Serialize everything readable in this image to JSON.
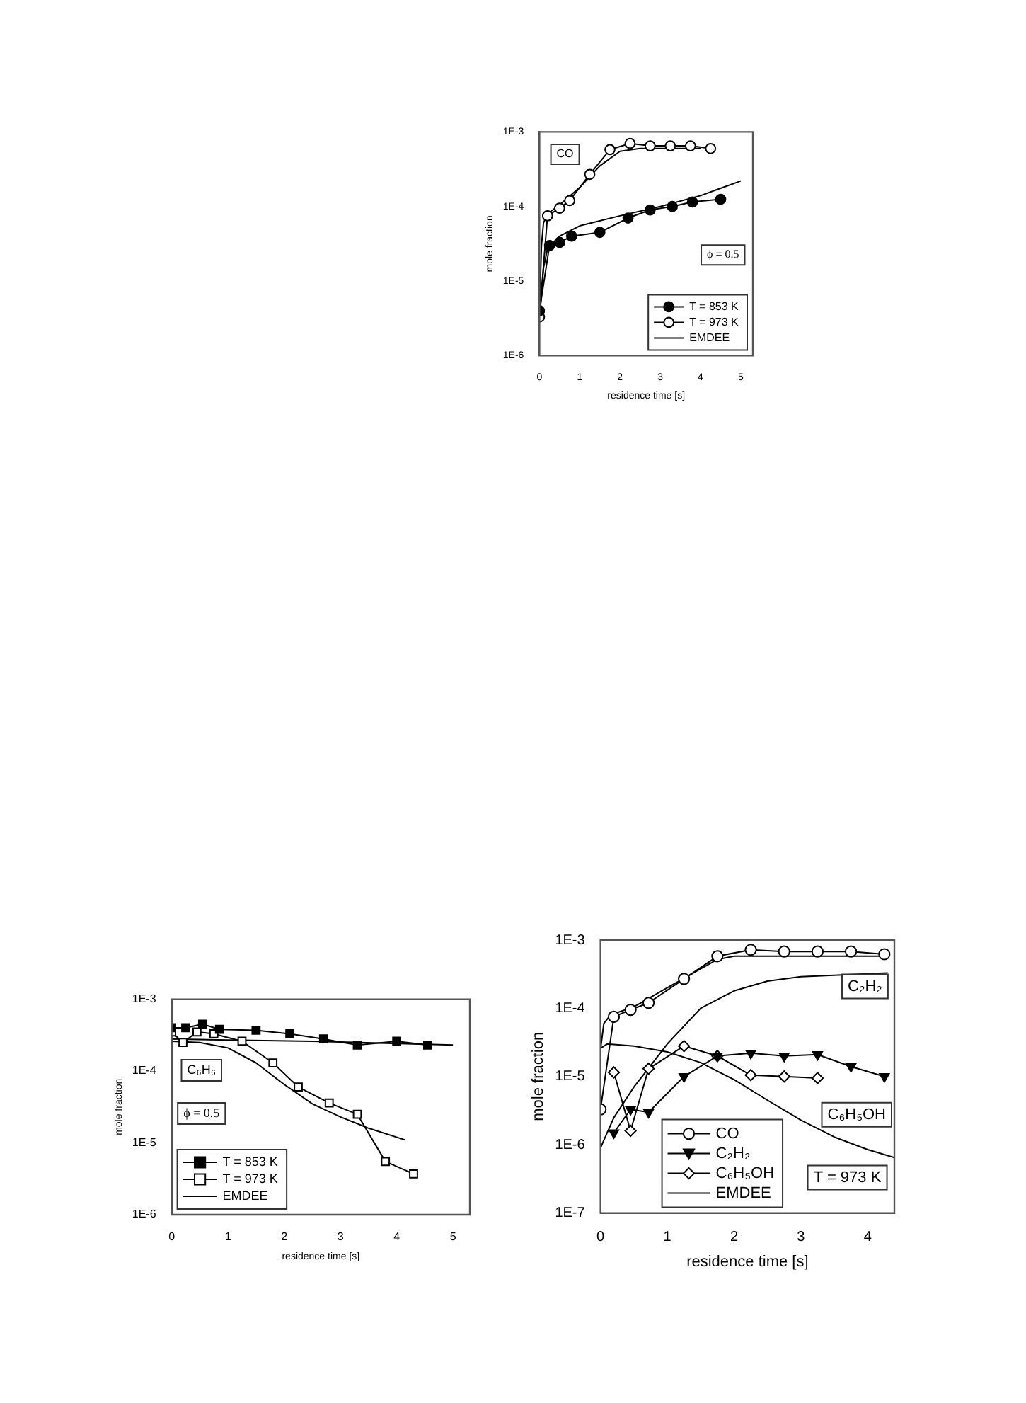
{
  "chart_data": [
    {
      "type": "line",
      "xlabel": "residence time [s]",
      "ylabel": "mole fraction",
      "log": "y",
      "grid": false,
      "legend": "bottom right",
      "xlim": [
        0,
        5.3
      ],
      "xticks": [
        0,
        1,
        2,
        3,
        4,
        5
      ],
      "ylim": [
        1e-06,
        0.001
      ],
      "yticks": [
        {
          "value": 1e-06,
          "label": "1E-6"
        },
        {
          "value": 1e-05,
          "label": "1E-5"
        },
        {
          "value": 0.0001,
          "label": "1E-4"
        },
        {
          "value": 0.001,
          "label": "1E-3"
        }
      ],
      "annotations": [
        "CO",
        "ϕ = 0.5"
      ],
      "series": [
        {
          "name": "T = 853 K",
          "color": "#000000",
          "marker": "circle",
          "colors": [
            "#000000",
            "#000000",
            "#000000",
            "#000000",
            "#000000",
            "#000000",
            "#000000",
            "#000000",
            "#000000",
            "#000000"
          ],
          "x": [
            0,
            0.25,
            0.5,
            0.8,
            1.5,
            2.2,
            2.75,
            3.3,
            3.8,
            4.5
          ],
          "values": [
            4e-06,
            3e-05,
            3.3e-05,
            4e-05,
            4.5e-05,
            7e-05,
            9e-05,
            0.0001,
            0.000115,
            0.000125
          ]
        },
        {
          "name": "T = 973 K",
          "color": "#000000",
          "marker": "circle",
          "colors": [
            "#ffffff",
            "#ffffff",
            "#ffffff",
            "#ffffff",
            "#ffffff",
            "#ffffff",
            "#ffffff",
            "#ffffff",
            "#ffffff",
            "#ffffff",
            "#ffffff"
          ],
          "x": [
            0,
            0.2,
            0.5,
            0.75,
            1.25,
            1.75,
            2.25,
            2.75,
            3.25,
            3.75,
            4.25
          ],
          "values": [
            3.3e-06,
            7.5e-05,
            9.5e-05,
            0.00012,
            0.00027,
            0.00058,
            0.0007,
            0.00065,
            0.00065,
            0.00065,
            0.0006
          ]
        },
        {
          "name": "EMDEE",
          "color": "#000000",
          "marker": "none",
          "x": [
            0,
            0.05,
            0.1,
            0.2,
            0.5,
            1,
            1.5,
            2,
            2.5,
            3,
            4
          ],
          "values": [
            4e-06,
            3e-05,
            6e-05,
            8e-05,
            0.000105,
            0.00018,
            0.00035,
            0.00055,
            0.0006,
            0.0006,
            0.0006
          ]
        },
        {
          "color": "#000000",
          "marker": "none",
          "x": [
            0,
            0.1,
            0.2,
            0.5,
            1,
            2,
            3,
            4,
            5
          ],
          "values": [
            3e-06,
            1.5e-05,
            2.7e-05,
            4e-05,
            5.5e-05,
            7.5e-05,
            0.0001,
            0.00014,
            0.00022
          ]
        }
      ]
    },
    {
      "type": "line",
      "xlabel": "residence time [s]",
      "ylabel": "mole fraction",
      "log": "y",
      "grid": false,
      "legend": "bottom left",
      "xlim": [
        0,
        5.3
      ],
      "xticks": [
        0,
        1,
        2,
        3,
        4,
        5
      ],
      "ylim": [
        1e-06,
        0.001
      ],
      "yticks": [
        {
          "value": 1e-06,
          "label": "1E-6"
        },
        {
          "value": 1e-05,
          "label": "1E-5"
        },
        {
          "value": 0.0001,
          "label": "1E-4"
        },
        {
          "value": 0.001,
          "label": "1E-3"
        }
      ],
      "annotations": [
        "C₆H₆",
        "ϕ = 0.5"
      ],
      "series": [
        {
          "name": "T = 853 K",
          "color": "#000000",
          "marker": "square",
          "colors": [
            "#000000",
            "#000000",
            "#000000",
            "#000000",
            "#000000",
            "#000000",
            "#000000",
            "#000000",
            "#000000",
            "#000000"
          ],
          "x": [
            0,
            0.25,
            0.55,
            0.85,
            1.5,
            2.1,
            2.7,
            3.3,
            4,
            4.55
          ],
          "values": [
            0.0004,
            0.0004,
            0.00045,
            0.00038,
            0.00037,
            0.00033,
            0.00028,
            0.00023,
            0.00026,
            0.00023
          ]
        },
        {
          "name": "T = 973 K",
          "color": "#000000",
          "marker": "square",
          "colors": [
            "#ffffff",
            "#ffffff",
            "#ffffff",
            "#ffffff",
            "#ffffff",
            "#ffffff",
            "#ffffff",
            "#ffffff",
            "#ffffff",
            "#ffffff",
            "#ffffff"
          ],
          "x": [
            0,
            0.2,
            0.45,
            0.75,
            1.25,
            1.8,
            2.25,
            2.8,
            3.3,
            3.8,
            4.3
          ],
          "values": [
            0.00035,
            0.00025,
            0.00035,
            0.00033,
            0.00026,
            0.00013,
            6e-05,
            3.6e-05,
            2.5e-05,
            5.5e-06,
            3.7e-06
          ]
        },
        {
          "name": "EMDEE",
          "color": "#000000",
          "marker": "none",
          "x": [
            0,
            1,
            2.5,
            5
          ],
          "values": [
            0.00028,
            0.00027,
            0.00026,
            0.00023
          ]
        },
        {
          "color": "#000000",
          "marker": "none",
          "x": [
            0,
            0.5,
            1,
            1.5,
            2,
            2.5,
            3,
            3.5,
            4.15
          ],
          "values": [
            0.00026,
            0.00025,
            0.00021,
            0.00013,
            6.5e-05,
            3.5e-05,
            2.3e-05,
            1.6e-05,
            1.1e-05
          ]
        }
      ]
    },
    {
      "type": "line",
      "xlabel": "residence time [s]",
      "ylabel": "mole fraction",
      "log": "y",
      "grid": false,
      "legend": "bottom left",
      "xlim": [
        0,
        4.4
      ],
      "xticks": [
        0,
        1,
        2,
        3,
        4
      ],
      "ylim": [
        1e-07,
        0.001
      ],
      "yticks": [
        {
          "value": 1e-07,
          "label": "1E-7"
        },
        {
          "value": 1e-06,
          "label": "1E-6"
        },
        {
          "value": 1e-05,
          "label": "1E-5"
        },
        {
          "value": 0.0001,
          "label": "1E-4"
        },
        {
          "value": 0.001,
          "label": "1E-3"
        }
      ],
      "annotations": [
        "C₂H₂",
        "C₆H₅OH",
        "T = 973 K"
      ],
      "series": [
        {
          "name": "CO",
          "color": "#000000",
          "marker": "circle",
          "colors": [
            "#ffffff",
            "#ffffff",
            "#ffffff",
            "#ffffff",
            "#ffffff",
            "#ffffff",
            "#ffffff",
            "#ffffff",
            "#ffffff",
            "#ffffff",
            "#ffffff"
          ],
          "x": [
            0,
            0.2,
            0.45,
            0.72,
            1.25,
            1.75,
            2.25,
            2.75,
            3.25,
            3.75,
            4.25
          ],
          "values": [
            3.3e-06,
            7.5e-05,
            9.5e-05,
            0.00012,
            0.00027,
            0.00058,
            0.00072,
            0.00068,
            0.00068,
            0.00068,
            0.00062
          ]
        },
        {
          "name": "C₂H₂",
          "color": "#000000",
          "marker": "triangle",
          "colors": [
            "#000000",
            "#000000",
            "#000000",
            "#000000",
            "#000000",
            "#000000",
            "#000000",
            "#000000",
            "#000000",
            "#000000"
          ],
          "x": [
            0.2,
            0.45,
            0.72,
            1.25,
            1.75,
            2.25,
            2.75,
            3.25,
            3.75,
            4.25
          ],
          "values": [
            1.5e-06,
            3.3e-06,
            3e-06,
            1e-05,
            2e-05,
            2.2e-05,
            2e-05,
            2.1e-05,
            1.4e-05,
            1e-05
          ]
        },
        {
          "name": "C₆H₅OH",
          "color": "#000000",
          "marker": "diamond",
          "colors": [
            "#ffffff",
            "#ffffff",
            "#ffffff",
            "#ffffff",
            "#ffffff",
            "#ffffff",
            "#ffffff",
            "#ffffff"
          ],
          "x": [
            0.2,
            0.45,
            0.72,
            1.25,
            1.75,
            2.25,
            2.75,
            3.25
          ],
          "values": [
            1.15e-05,
            1.6e-06,
            1.3e-05,
            2.8e-05,
            2e-05,
            1.05e-05,
            1e-05,
            9.5e-06
          ]
        },
        {
          "name": "EMDEE",
          "color": "#000000",
          "marker": "none",
          "x": [
            0,
            0.05,
            0.15,
            0.5,
            1,
            1.5,
            1.75,
            2,
            3,
            4.3
          ],
          "values": [
            2.5e-05,
            6e-05,
            8e-05,
            0.000105,
            0.0002,
            0.00038,
            0.00052,
            0.00058,
            0.00058,
            0.00058
          ]
        },
        {
          "color": "#000000",
          "marker": "none",
          "x": [
            0,
            0.2,
            0.5,
            1,
            1.5,
            2,
            2.5,
            3,
            4.3
          ],
          "values": [
            9e-07,
            2.5e-06,
            7e-06,
            3e-05,
            0.0001,
            0.00018,
            0.00025,
            0.00029,
            0.00033
          ]
        },
        {
          "color": "#000000",
          "marker": "none",
          "x": [
            0,
            0.1,
            0.5,
            1,
            1.5,
            2,
            2.5,
            3,
            3.5,
            4,
            4.4
          ],
          "values": [
            2.6e-05,
            3e-05,
            2.8e-05,
            2.3e-05,
            1.6e-05,
            9e-06,
            4.5e-06,
            2.3e-06,
            1.3e-06,
            8.5e-07,
            6.5e-07
          ]
        }
      ]
    }
  ]
}
